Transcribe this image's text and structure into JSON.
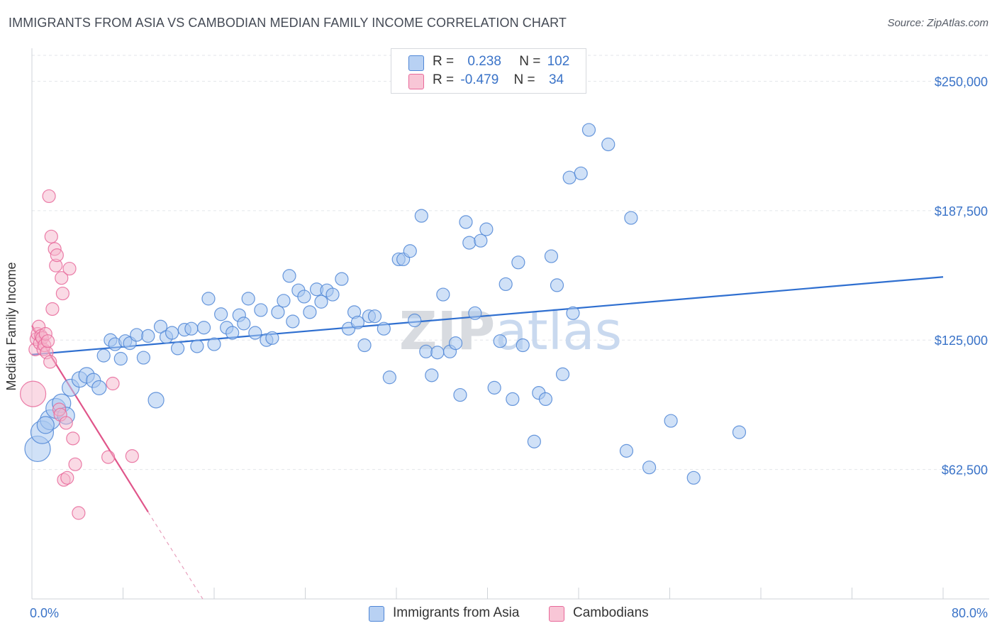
{
  "title": "IMMIGRANTS FROM ASIA VS CAMBODIAN MEDIAN FAMILY INCOME CORRELATION CHART",
  "source": "Source: ZipAtlas.com",
  "colors": {
    "blue": "#4f86d6",
    "blue_fill": "#aac8f0",
    "pink": "#e8699a",
    "pink_fill": "#f5b6cb",
    "tick_label": "#3a73c8",
    "grid": "#e3e6ea"
  },
  "legend": {
    "rows": [
      {
        "r_label": "R =",
        "r_value": "0.238",
        "n_label": "N =",
        "n_value": "102"
      },
      {
        "r_label": "R =",
        "r_value": "-0.479",
        "n_label": "N =",
        "n_value": "34"
      }
    ]
  },
  "chart_data": {
    "type": "scatter",
    "title": "IMMIGRANTS FROM ASIA VS CAMBODIAN MEDIAN FAMILY INCOME CORRELATION CHART",
    "xlabel": "",
    "ylabel": "Median Family Income",
    "xlim": [
      0,
      80
    ],
    "ylim": [
      0,
      262500
    ],
    "x_tick_labels": [
      "0.0%",
      "80.0%"
    ],
    "y_ticks": [
      62500,
      125000,
      187500,
      250000
    ],
    "y_tick_labels": [
      "$62,500",
      "$125,000",
      "$187,500",
      "$250,000"
    ],
    "watermark": "ZIPatlas",
    "series": [
      {
        "name": "Immigrants from Asia",
        "r": 0.238,
        "n": 102,
        "trend": {
          "x": [
            0,
            80
          ],
          "y": [
            118000,
            155500
          ]
        },
        "points": [
          [
            0.5,
            72500
          ],
          [
            0.9,
            80500
          ],
          [
            1.6,
            86500
          ],
          [
            2.1,
            92000
          ],
          [
            2.6,
            94500
          ],
          [
            3.4,
            102000
          ],
          [
            4.2,
            106000
          ],
          [
            4.8,
            108000
          ],
          [
            5.4,
            105500
          ],
          [
            5.9,
            102000
          ],
          [
            6.3,
            117500
          ],
          [
            6.9,
            125000
          ],
          [
            7.3,
            123000
          ],
          [
            7.8,
            116000
          ],
          [
            8.2,
            124500
          ],
          [
            8.6,
            123500
          ],
          [
            9.2,
            127500
          ],
          [
            9.8,
            116500
          ],
          [
            10.2,
            127000
          ],
          [
            10.9,
            96000
          ],
          [
            11.3,
            131500
          ],
          [
            11.8,
            126500
          ],
          [
            12.3,
            128500
          ],
          [
            12.8,
            121000
          ],
          [
            13.4,
            130000
          ],
          [
            14.0,
            130500
          ],
          [
            14.5,
            122000
          ],
          [
            15.1,
            131000
          ],
          [
            15.5,
            145000
          ],
          [
            16.0,
            123000
          ],
          [
            16.6,
            137500
          ],
          [
            17.1,
            131000
          ],
          [
            17.6,
            128500
          ],
          [
            18.2,
            137000
          ],
          [
            18.6,
            133000
          ],
          [
            19.0,
            145000
          ],
          [
            19.6,
            128500
          ],
          [
            20.1,
            139500
          ],
          [
            20.6,
            125000
          ],
          [
            21.1,
            126000
          ],
          [
            21.6,
            138500
          ],
          [
            22.1,
            144000
          ],
          [
            22.6,
            156000
          ],
          [
            22.9,
            134000
          ],
          [
            23.4,
            149000
          ],
          [
            23.9,
            146000
          ],
          [
            24.4,
            138500
          ],
          [
            25.0,
            149500
          ],
          [
            25.4,
            143500
          ],
          [
            25.9,
            149000
          ],
          [
            26.4,
            147000
          ],
          [
            27.2,
            154500
          ],
          [
            27.8,
            130500
          ],
          [
            28.3,
            138500
          ],
          [
            28.6,
            133500
          ],
          [
            29.2,
            122500
          ],
          [
            29.6,
            136500
          ],
          [
            30.1,
            136500
          ],
          [
            30.9,
            130500
          ],
          [
            31.4,
            107000
          ],
          [
            32.2,
            164000
          ],
          [
            32.6,
            164000
          ],
          [
            33.2,
            168000
          ],
          [
            33.6,
            134500
          ],
          [
            34.2,
            185000
          ],
          [
            34.6,
            119500
          ],
          [
            35.1,
            108000
          ],
          [
            35.6,
            119000
          ],
          [
            36.1,
            147000
          ],
          [
            36.7,
            119500
          ],
          [
            37.2,
            123500
          ],
          [
            37.6,
            98500
          ],
          [
            38.1,
            182000
          ],
          [
            38.4,
            172000
          ],
          [
            38.9,
            138000
          ],
          [
            39.4,
            173000
          ],
          [
            39.9,
            178500
          ],
          [
            40.6,
            102000
          ],
          [
            41.1,
            124500
          ],
          [
            41.6,
            152000
          ],
          [
            42.2,
            96500
          ],
          [
            42.7,
            162500
          ],
          [
            43.1,
            122500
          ],
          [
            44.1,
            76000
          ],
          [
            44.5,
            99500
          ],
          [
            45.1,
            96500
          ],
          [
            45.6,
            165500
          ],
          [
            46.1,
            151500
          ],
          [
            46.6,
            108500
          ],
          [
            47.2,
            203500
          ],
          [
            47.5,
            138000
          ],
          [
            48.2,
            205500
          ],
          [
            48.9,
            226500
          ],
          [
            50.6,
            219500
          ],
          [
            52.2,
            71500
          ],
          [
            52.6,
            184000
          ],
          [
            54.2,
            63500
          ],
          [
            56.1,
            86000
          ],
          [
            58.1,
            58500
          ],
          [
            62.1,
            80500
          ],
          [
            1.2,
            84000
          ],
          [
            3.0,
            88500
          ]
        ],
        "point_sizes": [
          18,
          16,
          14,
          14,
          13,
          12,
          11,
          11,
          10,
          10,
          9,
          9,
          9,
          9,
          9,
          9,
          9,
          9,
          9,
          11,
          9,
          9,
          9,
          9,
          9,
          9,
          9,
          9,
          9,
          9,
          9,
          9,
          9,
          9,
          9,
          9,
          9,
          9,
          9,
          9,
          9,
          9,
          9,
          9,
          9,
          9,
          9,
          9,
          9,
          9,
          9,
          9,
          9,
          9,
          9,
          9,
          9,
          9,
          9,
          9,
          9,
          9,
          9,
          9,
          9,
          9,
          9,
          9,
          9,
          9,
          9,
          9,
          9,
          9,
          9,
          9,
          9,
          9,
          9,
          9,
          9,
          9,
          9,
          9,
          9,
          9,
          9,
          9,
          9,
          9,
          9,
          9,
          9,
          9,
          9,
          9,
          9,
          9,
          9,
          9,
          12,
          12
        ]
      },
      {
        "name": "Cambodians",
        "r": -0.479,
        "n": 34,
        "trend": {
          "x": [
            0,
            10.2
          ],
          "y": [
            132000,
            42000
          ]
        },
        "trend_dashed": {
          "x": [
            10.2,
            15
          ],
          "y": [
            42000,
            0
          ]
        },
        "points": [
          [
            0.1,
            99000
          ],
          [
            0.3,
            120500
          ],
          [
            0.4,
            125500
          ],
          [
            0.5,
            128000
          ],
          [
            0.6,
            131500
          ],
          [
            0.7,
            123500
          ],
          [
            0.8,
            127000
          ],
          [
            0.9,
            126000
          ],
          [
            1.0,
            120500
          ],
          [
            1.1,
            122500
          ],
          [
            1.2,
            128000
          ],
          [
            1.3,
            119000
          ],
          [
            1.4,
            124500
          ],
          [
            1.5,
            194500
          ],
          [
            1.6,
            114500
          ],
          [
            1.7,
            175000
          ],
          [
            1.8,
            140000
          ],
          [
            2.0,
            169000
          ],
          [
            2.1,
            161000
          ],
          [
            2.2,
            166000
          ],
          [
            2.4,
            91500
          ],
          [
            2.5,
            89000
          ],
          [
            2.6,
            155000
          ],
          [
            2.7,
            147500
          ],
          [
            2.8,
            57500
          ],
          [
            3.0,
            85000
          ],
          [
            3.1,
            58500
          ],
          [
            3.3,
            159500
          ],
          [
            3.6,
            77500
          ],
          [
            3.8,
            65000
          ],
          [
            4.1,
            41500
          ],
          [
            6.7,
            68500
          ],
          [
            7.1,
            104000
          ],
          [
            8.8,
            69000
          ]
        ],
        "point_sizes": [
          18,
          9,
          9,
          9,
          9,
          9,
          9,
          9,
          9,
          9,
          9,
          9,
          9,
          9,
          9,
          9,
          9,
          9,
          9,
          9,
          9,
          9,
          9,
          9,
          9,
          9,
          9,
          9,
          9,
          9,
          9,
          9,
          9,
          9
        ]
      }
    ]
  }
}
